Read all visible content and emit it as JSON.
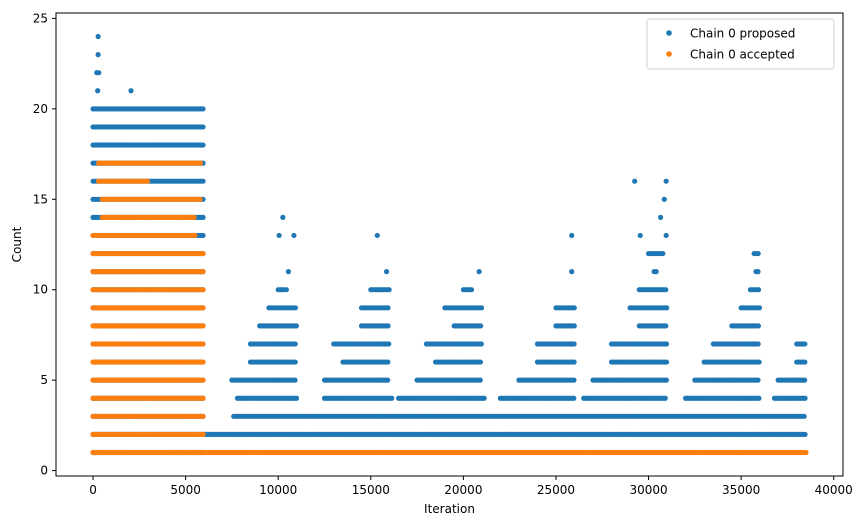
{
  "chart_data": {
    "type": "scatter",
    "title": "",
    "xlabel": "Iteration",
    "ylabel": "Count",
    "xlim": [
      -2000,
      40500
    ],
    "ylim": [
      -0.3,
      25.3
    ],
    "x_ticks": [
      0,
      5000,
      10000,
      15000,
      20000,
      25000,
      30000,
      35000,
      40000
    ],
    "y_ticks": [
      0,
      5,
      10,
      15,
      20,
      25
    ],
    "x_tick_labels": [
      "0",
      "5000",
      "10000",
      "15000",
      "20000",
      "25000",
      "30000",
      "35000",
      "40000"
    ],
    "y_tick_labels": [
      "0",
      "5",
      "10",
      "15",
      "20",
      "25"
    ],
    "grid": false,
    "legend_position": "top-right",
    "note_on_series": "Dense integer-valued scatter; each band lists the approximate iteration ranges where points appear at that count.",
    "series": [
      {
        "name": "Chain 0 proposed",
        "color": "#1f77b4",
        "bands": [
          {
            "y": 1,
            "ranges": [
              [
                0,
                6000
              ]
            ]
          },
          {
            "y": 2,
            "ranges": [
              [
                0,
                6000
              ],
              [
                6000,
                38500
              ]
            ]
          },
          {
            "y": 3,
            "ranges": [
              [
                0,
                6000
              ],
              [
                7600,
                38500
              ]
            ]
          },
          {
            "y": 4,
            "ranges": [
              [
                0,
                6000
              ],
              [
                7800,
                11000
              ],
              [
                12500,
                16200
              ],
              [
                16500,
                21200
              ],
              [
                22000,
                26000
              ],
              [
                26500,
                31000
              ],
              [
                32000,
                36000
              ],
              [
                36800,
                38500
              ]
            ]
          },
          {
            "y": 5,
            "ranges": [
              [
                0,
                6000
              ],
              [
                7500,
                11000
              ],
              [
                12500,
                16000
              ],
              [
                17500,
                21000
              ],
              [
                23000,
                26000
              ],
              [
                27000,
                31000
              ],
              [
                32500,
                36000
              ],
              [
                37000,
                38500
              ]
            ]
          },
          {
            "y": 6,
            "ranges": [
              [
                0,
                6000
              ],
              [
                8500,
                11000
              ],
              [
                13500,
                16000
              ],
              [
                18500,
                21000
              ],
              [
                24000,
                26000
              ],
              [
                28000,
                31000
              ],
              [
                33000,
                36000
              ],
              [
                38000,
                38500
              ]
            ]
          },
          {
            "y": 7,
            "ranges": [
              [
                0,
                6000
              ],
              [
                8500,
                11000
              ],
              [
                13000,
                16000
              ],
              [
                18000,
                21000
              ],
              [
                24000,
                26000
              ],
              [
                28000,
                31000
              ],
              [
                33500,
                36000
              ],
              [
                38000,
                38500
              ]
            ]
          },
          {
            "y": 8,
            "ranges": [
              [
                0,
                6000
              ],
              [
                9000,
                11000
              ],
              [
                14500,
                16000
              ],
              [
                19500,
                21000
              ],
              [
                25000,
                26000
              ],
              [
                29500,
                31000
              ],
              [
                34500,
                36000
              ]
            ]
          },
          {
            "y": 9,
            "ranges": [
              [
                0,
                6000
              ],
              [
                9500,
                11000
              ],
              [
                14500,
                16000
              ],
              [
                19000,
                21000
              ],
              [
                25000,
                26000
              ],
              [
                29000,
                31000
              ],
              [
                35000,
                36000
              ]
            ]
          },
          {
            "y": 10,
            "ranges": [
              [
                0,
                6000
              ],
              [
                10000,
                10500
              ],
              [
                15000,
                16000
              ],
              [
                20000,
                20500
              ],
              [
                29500,
                31000
              ],
              [
                35500,
                36000
              ]
            ]
          },
          {
            "y": 11,
            "ranges": [
              [
                0,
                6000
              ],
              [
                10500,
                10600
              ],
              [
                15800,
                15900
              ],
              [
                20800,
                20900
              ],
              [
                25800,
                25900
              ],
              [
                30300,
                30500
              ],
              [
                35800,
                36000
              ]
            ]
          },
          {
            "y": 12,
            "ranges": [
              [
                0,
                6000
              ],
              [
                30000,
                30800
              ],
              [
                35700,
                36000
              ]
            ]
          },
          {
            "y": 13,
            "ranges": [
              [
                0,
                6000
              ],
              [
                10000,
                10100
              ],
              [
                10800,
                10900
              ],
              [
                15300,
                15400
              ],
              [
                25800,
                25900
              ],
              [
                29500,
                29600
              ],
              [
                30900,
                31000
              ]
            ]
          },
          {
            "y": 14,
            "ranges": [
              [
                0,
                6000
              ],
              [
                10200,
                10300
              ],
              [
                30600,
                30700
              ]
            ]
          },
          {
            "y": 15,
            "ranges": [
              [
                0,
                6000
              ],
              [
                30800,
                30900
              ]
            ]
          },
          {
            "y": 16,
            "ranges": [
              [
                0,
                6000
              ],
              [
                29200,
                29300
              ],
              [
                30900,
                31000
              ]
            ]
          },
          {
            "y": 17,
            "ranges": [
              [
                0,
                6000
              ]
            ]
          },
          {
            "y": 18,
            "ranges": [
              [
                0,
                6000
              ]
            ]
          },
          {
            "y": 19,
            "ranges": [
              [
                0,
                6000
              ]
            ]
          },
          {
            "y": 20,
            "ranges": [
              [
                0,
                6000
              ]
            ]
          },
          {
            "y": 21,
            "ranges": [
              [
                200,
                300
              ],
              [
                2000,
                2100
              ]
            ]
          },
          {
            "y": 22,
            "ranges": [
              [
                200,
                400
              ]
            ]
          },
          {
            "y": 23,
            "ranges": [
              [
                250,
                300
              ]
            ]
          },
          {
            "y": 24,
            "ranges": [
              [
                250,
                300
              ]
            ]
          }
        ]
      },
      {
        "name": "Chain 0 accepted",
        "color": "#ff7f0e",
        "bands": [
          {
            "y": 1,
            "ranges": [
              [
                0,
                38500
              ]
            ]
          },
          {
            "y": 2,
            "ranges": [
              [
                0,
                6000
              ]
            ]
          },
          {
            "y": 3,
            "ranges": [
              [
                0,
                6000
              ]
            ]
          },
          {
            "y": 4,
            "ranges": [
              [
                0,
                6000
              ]
            ]
          },
          {
            "y": 5,
            "ranges": [
              [
                0,
                6000
              ]
            ]
          },
          {
            "y": 6,
            "ranges": [
              [
                0,
                6000
              ]
            ]
          },
          {
            "y": 7,
            "ranges": [
              [
                0,
                6000
              ]
            ]
          },
          {
            "y": 8,
            "ranges": [
              [
                0,
                6000
              ]
            ]
          },
          {
            "y": 9,
            "ranges": [
              [
                0,
                6000
              ]
            ]
          },
          {
            "y": 10,
            "ranges": [
              [
                0,
                6000
              ]
            ]
          },
          {
            "y": 11,
            "ranges": [
              [
                0,
                6000
              ]
            ]
          },
          {
            "y": 12,
            "ranges": [
              [
                0,
                6000
              ]
            ]
          },
          {
            "y": 13,
            "ranges": [
              [
                0,
                5500
              ]
            ]
          },
          {
            "y": 14,
            "ranges": [
              [
                500,
                5500
              ]
            ]
          },
          {
            "y": 15,
            "ranges": [
              [
                500,
                5800
              ]
            ]
          },
          {
            "y": 16,
            "ranges": [
              [
                300,
                3000
              ]
            ]
          },
          {
            "y": 17,
            "ranges": [
              [
                300,
                5800
              ]
            ]
          }
        ]
      }
    ]
  }
}
